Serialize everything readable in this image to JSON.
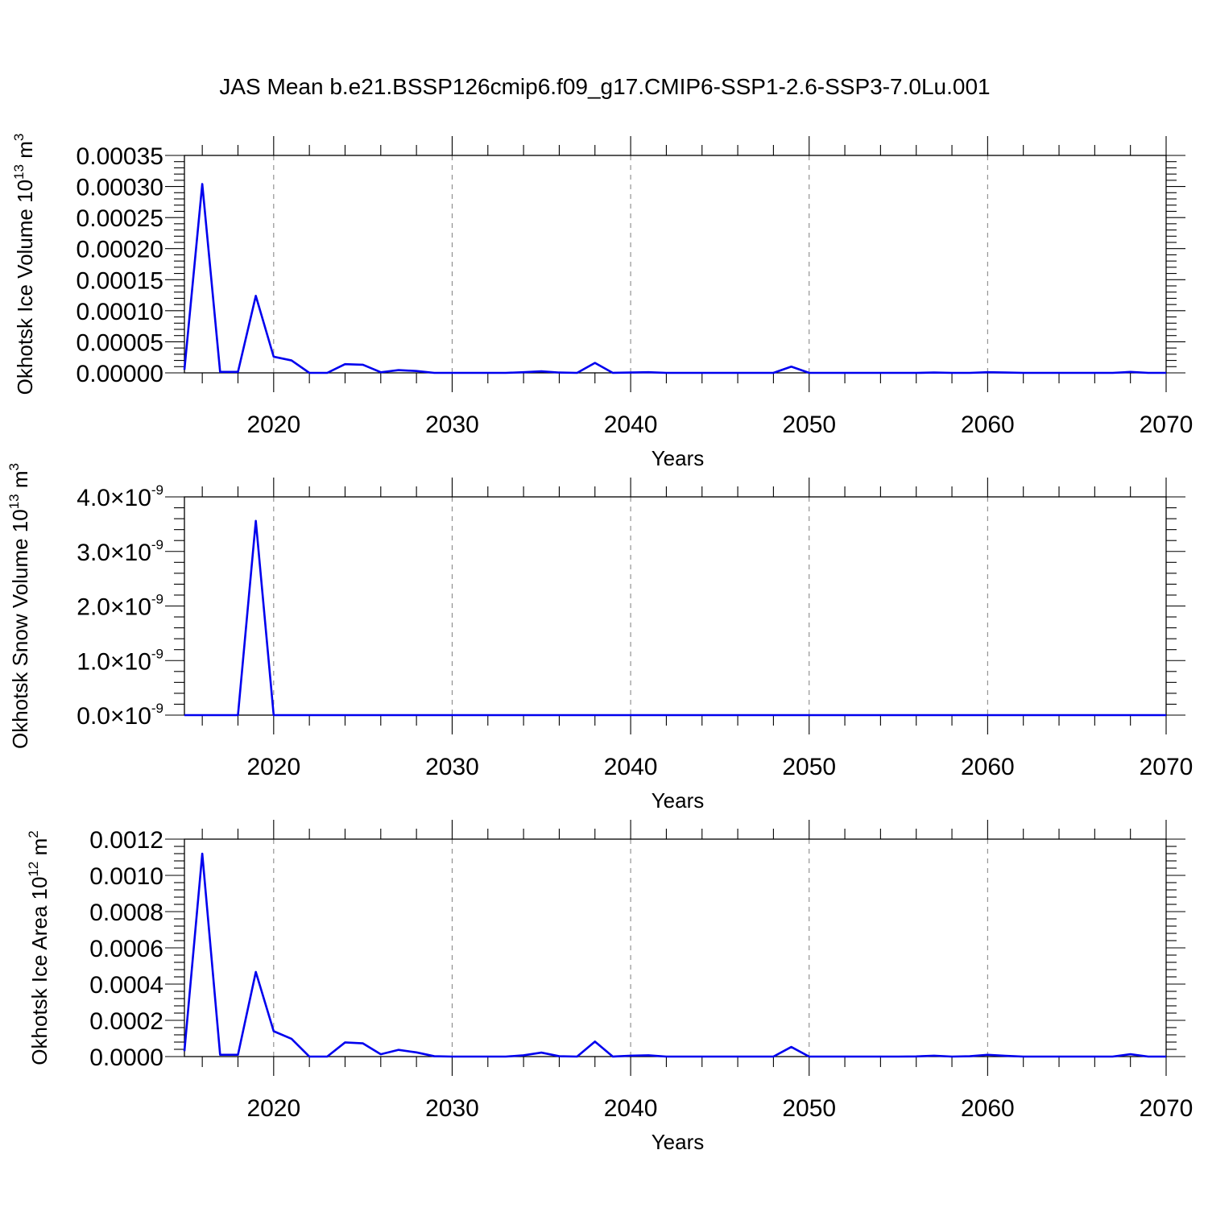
{
  "title": "JAS Mean b.e21.BSSP126cmip6.f09_g17.CMIP6-SSP1-2.6-SSP3-7.0Lu.001",
  "colors": {
    "series": "#0000ee",
    "grid": "#8a8a8a",
    "frame": "#000000"
  },
  "chart_data": [
    {
      "type": "line",
      "ylabel": {
        "prefix": "Okhotsk Ice Volume 10",
        "sup": "13",
        "suffix": " m",
        "sup2": "3"
      },
      "xlabel": "Years",
      "xlim": [
        2015,
        2070
      ],
      "ylim": [
        0,
        0.00035
      ],
      "xticks": [
        2020,
        2030,
        2040,
        2050,
        2060,
        2070
      ],
      "xtick_labels": [
        "2020",
        "2030",
        "2040",
        "2050",
        "2060",
        "2070"
      ],
      "yticks": [
        0,
        5e-05,
        0.0001,
        0.00015,
        0.0002,
        0.00025,
        0.0003,
        0.00035
      ],
      "ytick_labels": [
        "0.00000",
        "0.00005",
        "0.00010",
        "0.00015",
        "0.00020",
        "0.00025",
        "0.00030",
        "0.00035"
      ],
      "y_minor_step": 1e-05,
      "grid": "x-dashed",
      "x": [
        2015,
        2016,
        2017,
        2018,
        2019,
        2020,
        2021,
        2022,
        2023,
        2024,
        2025,
        2026,
        2027,
        2028,
        2029,
        2030,
        2031,
        2032,
        2033,
        2034,
        2035,
        2036,
        2037,
        2038,
        2039,
        2040,
        2041,
        2042,
        2043,
        2044,
        2045,
        2046,
        2047,
        2048,
        2049,
        2050,
        2051,
        2052,
        2053,
        2054,
        2055,
        2056,
        2057,
        2058,
        2059,
        2060,
        2061,
        2062,
        2063,
        2064,
        2065,
        2066,
        2067,
        2068,
        2069,
        2070
      ],
      "series": [
        {
          "values": [
            5e-06,
            0.000304,
            1.5e-06,
            1.5e-06,
            0.000124,
            2.6e-05,
            2e-05,
            0,
            0,
            1.4e-05,
            1.3e-05,
            1e-06,
            4.5e-06,
            3e-06,
            0,
            0,
            0,
            0,
            0,
            1e-06,
            2.5e-06,
            5e-07,
            0,
            1.6e-05,
            0,
            5e-07,
            1e-06,
            0,
            0,
            0,
            0,
            0,
            0,
            0,
            1e-05,
            0,
            0,
            0,
            0,
            0,
            0,
            0,
            5e-07,
            0,
            0,
            1e-06,
            5e-07,
            0,
            0,
            0,
            0,
            0,
            0,
            1.5e-06,
            0,
            0
          ]
        }
      ]
    },
    {
      "type": "line",
      "ylabel": {
        "prefix": "Okhotsk Snow Volume 10",
        "sup": "13",
        "suffix": " m",
        "sup2": "3"
      },
      "xlabel": "Years",
      "xlim": [
        2015,
        2070
      ],
      "ylim": [
        0,
        4e-09
      ],
      "xticks": [
        2020,
        2030,
        2040,
        2050,
        2060,
        2070
      ],
      "xtick_labels": [
        "2020",
        "2030",
        "2040",
        "2050",
        "2060",
        "2070"
      ],
      "yticks": [
        0,
        1e-09,
        2e-09,
        3e-09,
        4e-09
      ],
      "ytick_labels": [
        {
          "mant": "0.0",
          "times": "×10",
          "exp": "-9"
        },
        {
          "mant": "1.0",
          "times": "×10",
          "exp": "-9"
        },
        {
          "mant": "2.0",
          "times": "×10",
          "exp": "-9"
        },
        {
          "mant": "3.0",
          "times": "×10",
          "exp": "-9"
        },
        {
          "mant": "4.0",
          "times": "×10",
          "exp": "-9"
        }
      ],
      "y_minor_step": 2e-10,
      "grid": "x-dashed",
      "x": [
        2015,
        2016,
        2017,
        2018,
        2019,
        2020,
        2021,
        2022,
        2023,
        2024,
        2025,
        2026,
        2027,
        2028,
        2029,
        2030,
        2031,
        2032,
        2033,
        2034,
        2035,
        2036,
        2037,
        2038,
        2039,
        2040,
        2041,
        2042,
        2043,
        2044,
        2045,
        2046,
        2047,
        2048,
        2049,
        2050,
        2051,
        2052,
        2053,
        2054,
        2055,
        2056,
        2057,
        2058,
        2059,
        2060,
        2061,
        2062,
        2063,
        2064,
        2065,
        2066,
        2067,
        2068,
        2069,
        2070
      ],
      "series": [
        {
          "values": [
            0,
            0,
            0,
            0,
            3.56e-09,
            0,
            0,
            0,
            0,
            0,
            0,
            0,
            0,
            0,
            0,
            0,
            0,
            0,
            0,
            0,
            0,
            0,
            0,
            0,
            0,
            0,
            0,
            0,
            0,
            0,
            0,
            0,
            0,
            0,
            0,
            0,
            0,
            0,
            0,
            0,
            0,
            0,
            0,
            0,
            0,
            0,
            0,
            0,
            0,
            0,
            0,
            0,
            0,
            0,
            0,
            0
          ]
        }
      ]
    },
    {
      "type": "line",
      "ylabel": {
        "prefix": "Okhotsk Ice Area 10",
        "sup": "12",
        "suffix": " m",
        "sup2": "2"
      },
      "xlabel": "Years",
      "xlim": [
        2015,
        2070
      ],
      "ylim": [
        0,
        0.0012
      ],
      "xticks": [
        2020,
        2030,
        2040,
        2050,
        2060,
        2070
      ],
      "xtick_labels": [
        "2020",
        "2030",
        "2040",
        "2050",
        "2060",
        "2070"
      ],
      "yticks": [
        0,
        0.0002,
        0.0004,
        0.0006,
        0.0008,
        0.001,
        0.0012
      ],
      "ytick_labels": [
        "0.0000",
        "0.0002",
        "0.0004",
        "0.0006",
        "0.0008",
        "0.0010",
        "0.0012"
      ],
      "y_minor_step": 4e-05,
      "grid": "x-dashed",
      "x": [
        2015,
        2016,
        2017,
        2018,
        2019,
        2020,
        2021,
        2022,
        2023,
        2024,
        2025,
        2026,
        2027,
        2028,
        2029,
        2030,
        2031,
        2032,
        2033,
        2034,
        2035,
        2036,
        2037,
        2038,
        2039,
        2040,
        2041,
        2042,
        2043,
        2044,
        2045,
        2046,
        2047,
        2048,
        2049,
        2050,
        2051,
        2052,
        2053,
        2054,
        2055,
        2056,
        2057,
        2058,
        2059,
        2060,
        2061,
        2062,
        2063,
        2064,
        2065,
        2066,
        2067,
        2068,
        2069,
        2070
      ],
      "series": [
        {
          "values": [
            3e-05,
            0.00112,
            1e-05,
            1e-05,
            0.000467,
            0.00014,
            9.8e-05,
            0,
            0,
            7.8e-05,
            7.3e-05,
            1.3e-05,
            3.7e-05,
            2.3e-05,
            2e-06,
            0,
            0,
            0,
            0,
            7e-06,
            2.2e-05,
            2e-06,
            0,
            8.3e-05,
            0,
            5e-06,
            7e-06,
            0,
            0,
            0,
            0,
            0,
            0,
            0,
            5.3e-05,
            0,
            0,
            0,
            0,
            0,
            0,
            1e-06,
            5e-06,
            0,
            2e-06,
            1e-05,
            4e-06,
            0,
            0,
            0,
            0,
            0,
            0,
            1.3e-05,
            0,
            0
          ]
        }
      ]
    }
  ]
}
